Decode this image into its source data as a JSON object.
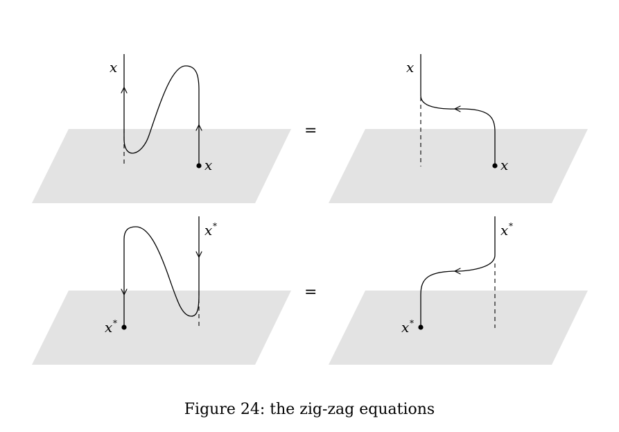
{
  "caption": "Figure 24: the zig-zag equations",
  "equals_sign": "=",
  "labels": {
    "x": "x",
    "x_star_base": "x",
    "x_star_sup": "*"
  },
  "colors": {
    "plane": "#e3e3e3",
    "line": "#000000"
  }
}
